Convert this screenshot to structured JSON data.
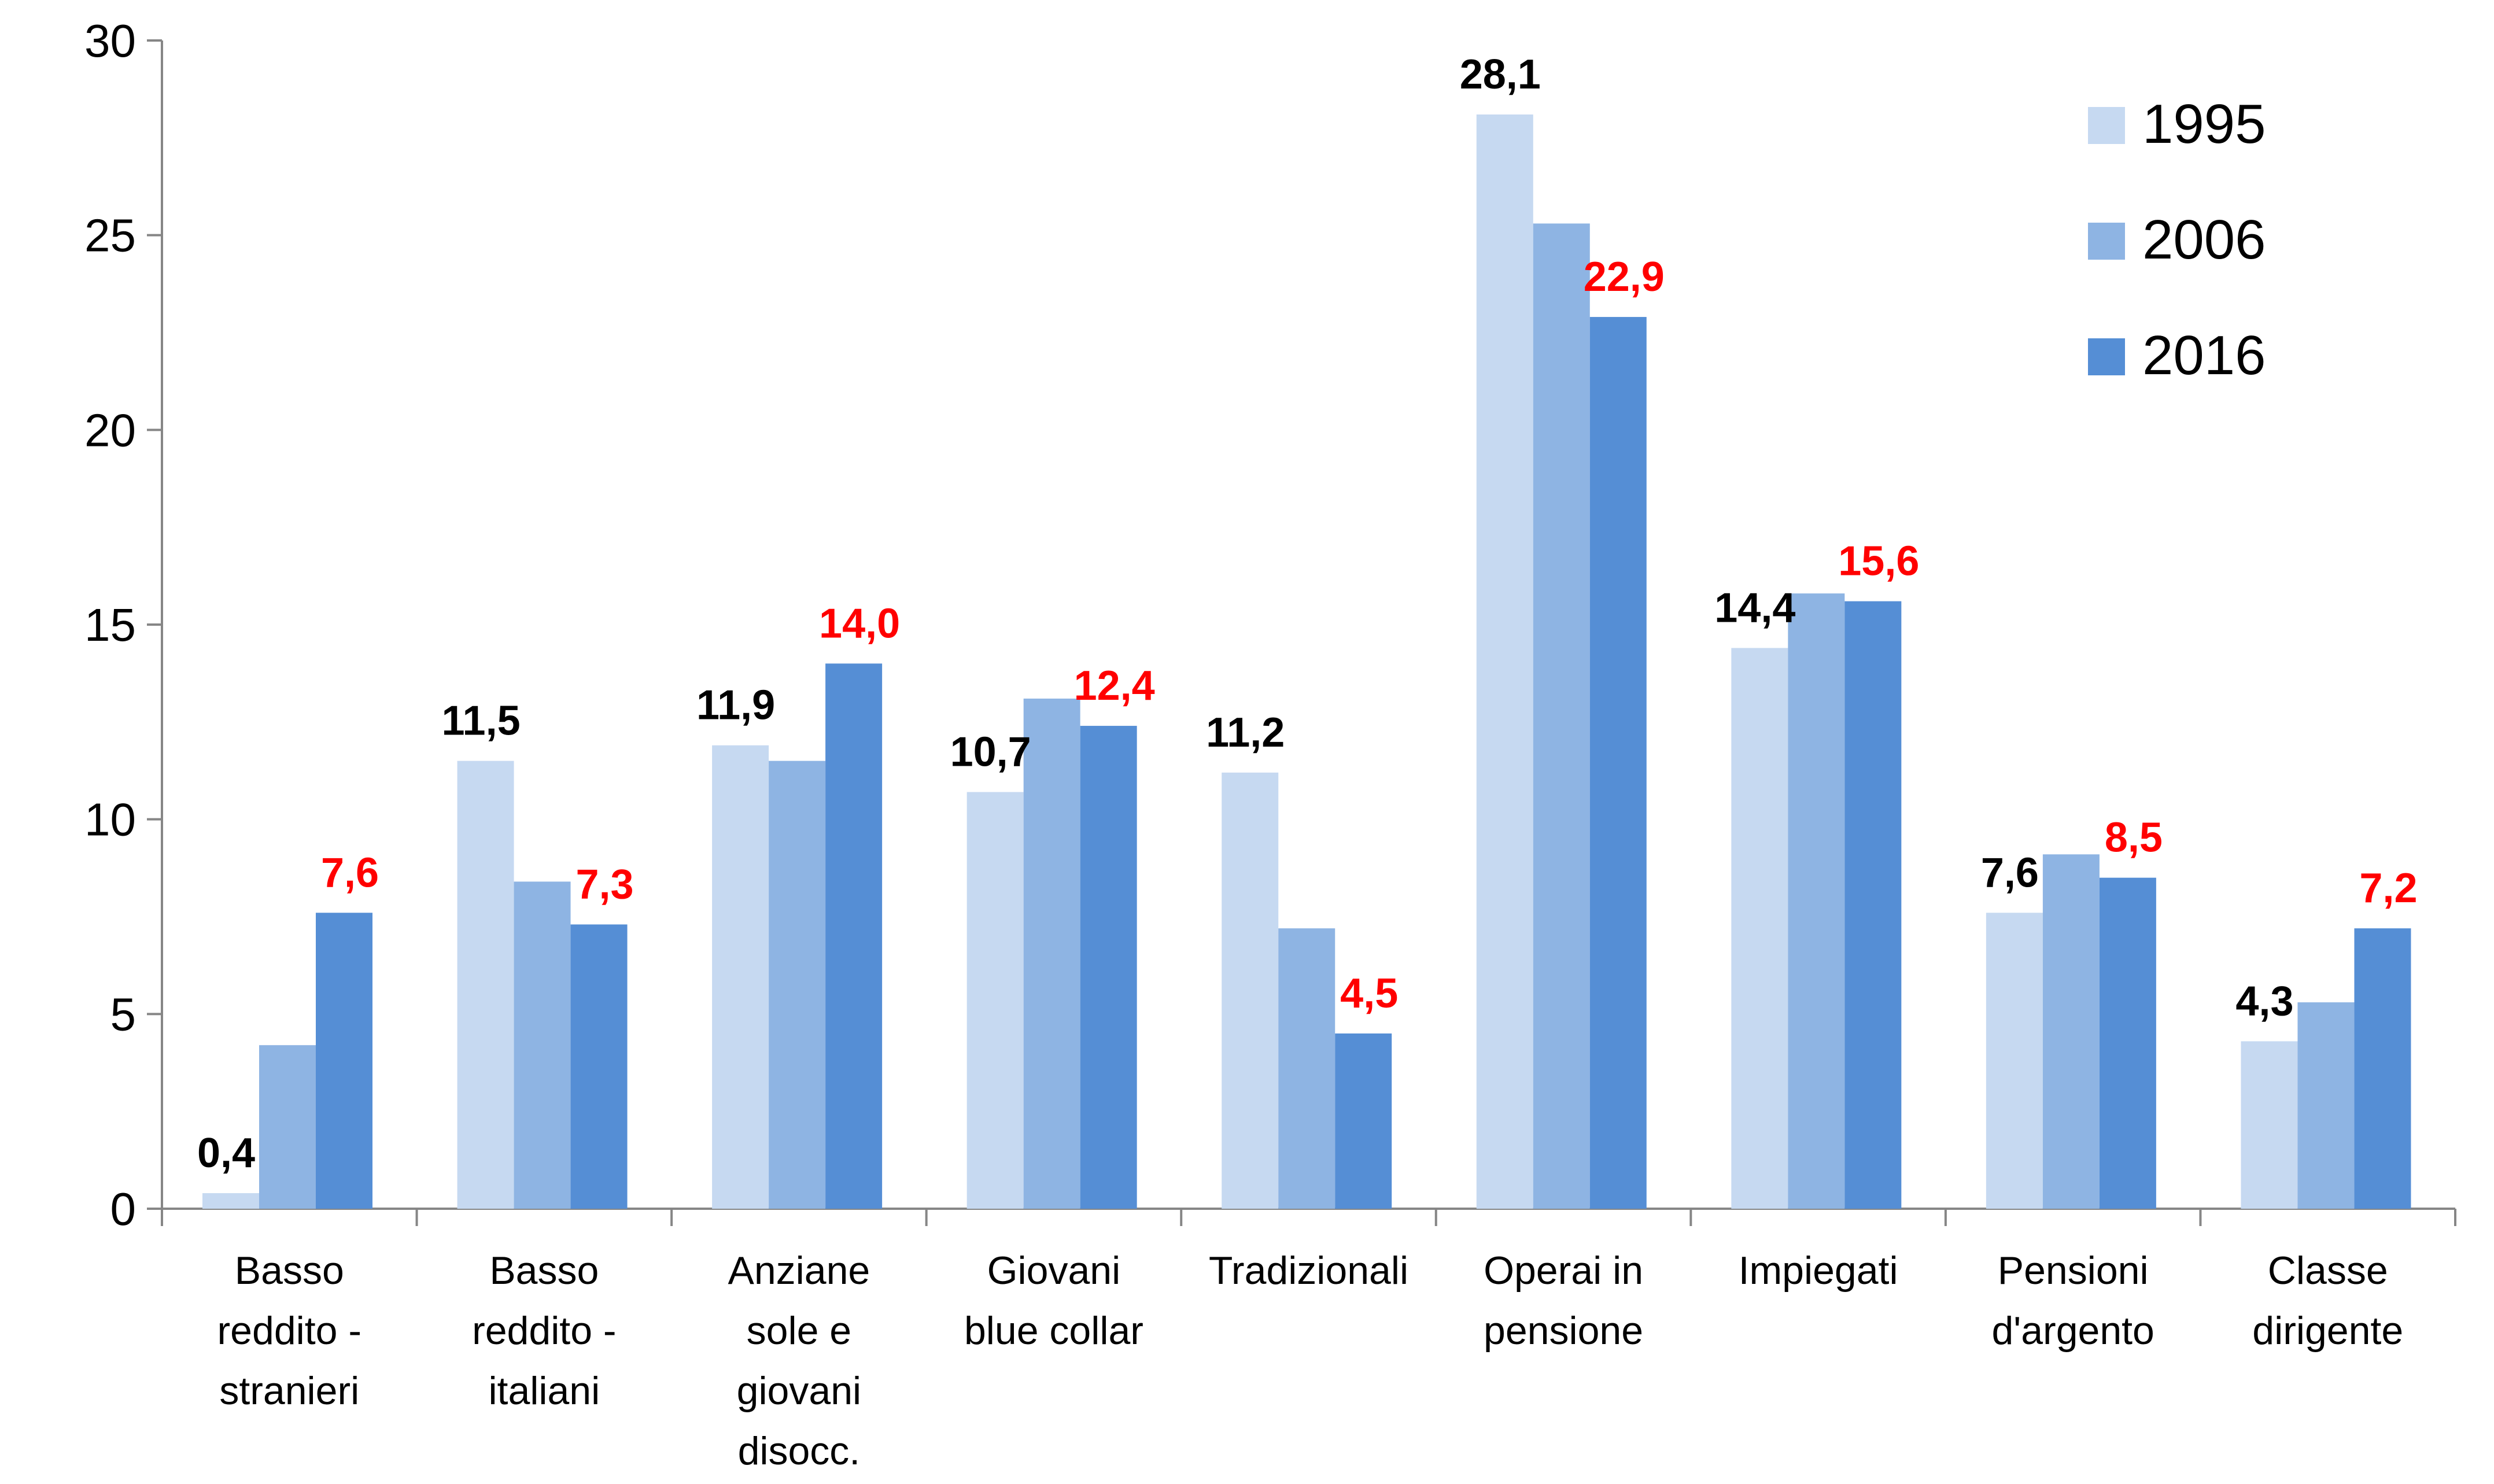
{
  "chart_data": {
    "type": "bar",
    "title": "",
    "xlabel": "",
    "ylabel": "",
    "ylim": [
      0,
      30
    ],
    "yticks": [
      "0",
      "5",
      "10",
      "15",
      "20",
      "25",
      "30"
    ],
    "grid": false,
    "legend_position": "top-right",
    "categories": [
      [
        "Basso",
        "reddito -",
        "stranieri"
      ],
      [
        "Basso",
        "reddito -",
        "italiani"
      ],
      [
        "Anziane",
        "sole e",
        "giovani",
        "disocc."
      ],
      [
        "Giovani",
        "blue collar"
      ],
      [
        "Tradizionali"
      ],
      [
        "Operai in",
        "pensione"
      ],
      [
        "Impiegati"
      ],
      [
        "Pensioni",
        "d'argento"
      ],
      [
        "Classe",
        "dirigente"
      ]
    ],
    "series": [
      {
        "name": "1995",
        "color": "#c6d9f1",
        "values": [
          0.4,
          11.5,
          11.9,
          10.7,
          11.2,
          28.1,
          14.4,
          7.6,
          4.3
        ]
      },
      {
        "name": "2006",
        "color": "#8eb4e3",
        "values": [
          4.2,
          8.4,
          11.5,
          13.1,
          7.2,
          25.3,
          15.8,
          9.1,
          5.3
        ]
      },
      {
        "name": "2016",
        "color": "#558ed5",
        "values": [
          7.6,
          7.3,
          14.0,
          12.4,
          4.5,
          22.9,
          15.6,
          8.5,
          7.2
        ]
      }
    ],
    "data_labels": {
      "1995": {
        "color": "#000000",
        "labels": [
          "0,4",
          "11,5",
          "11,9",
          "10,7",
          "11,2",
          "28,1",
          "14,4",
          "7,6",
          "4,3"
        ]
      },
      "2016": {
        "color": "#ff0000",
        "labels": [
          "7,6",
          "7,3",
          "14,0",
          "12,4",
          "4,5",
          "22,9",
          "15,6",
          "8,5",
          "7,2"
        ]
      }
    }
  }
}
